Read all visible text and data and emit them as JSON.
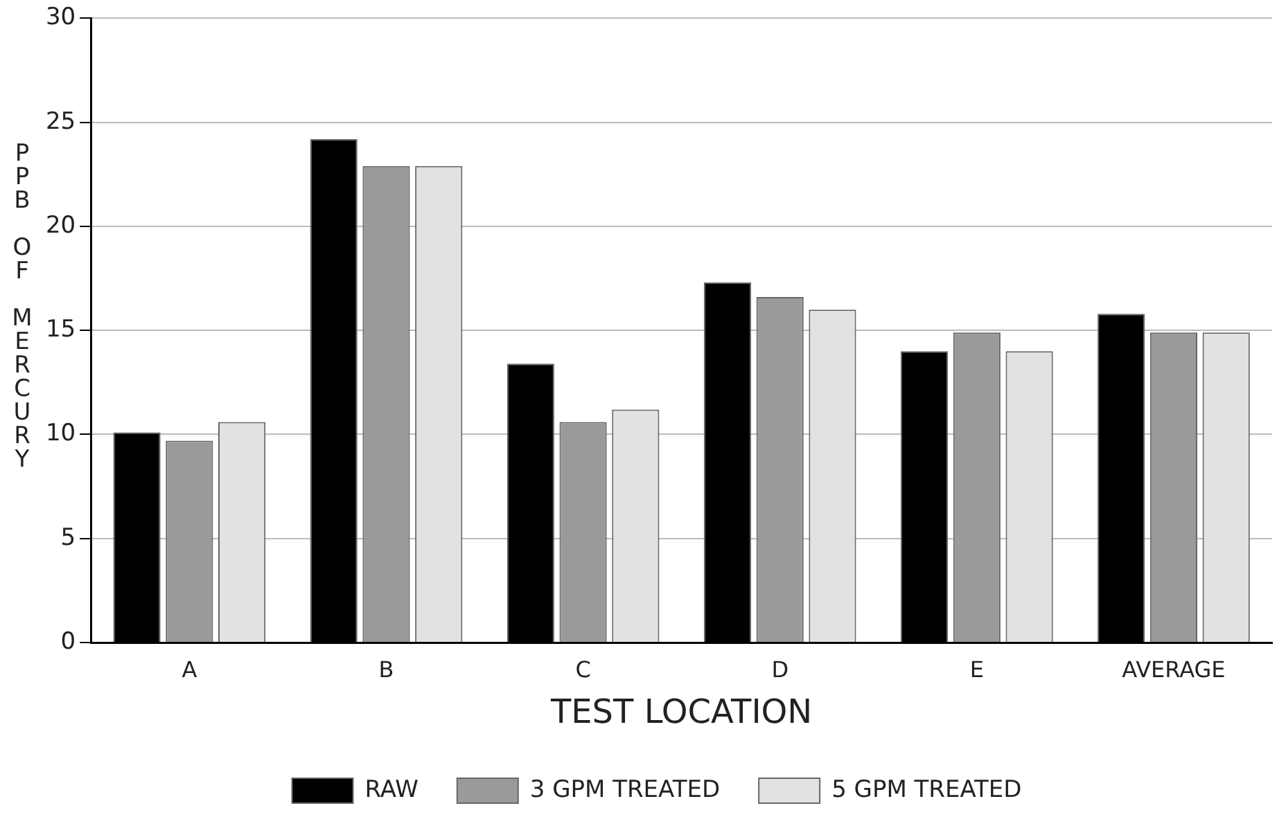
{
  "chart_data": {
    "type": "bar",
    "xlabel": "TEST LOCATION",
    "ylabel": "PPB OF MERCURY",
    "categories": [
      "A",
      "B",
      "C",
      "D",
      "E",
      "AVERAGE"
    ],
    "series": [
      {
        "name": "RAW",
        "color": "#000000",
        "values": [
          10.1,
          24.2,
          13.4,
          17.3,
          14.0,
          15.8
        ]
      },
      {
        "name": "3 GPM TREATED",
        "color": "#9a9a9a",
        "values": [
          9.7,
          22.9,
          10.6,
          16.6,
          14.9,
          14.9
        ]
      },
      {
        "name": "5 GPM TREATED",
        "color": "#e2e2e2",
        "values": [
          10.6,
          22.9,
          11.2,
          16.0,
          14.0,
          14.9
        ]
      }
    ],
    "ylim": [
      0,
      30
    ],
    "yticks": [
      0,
      5,
      10,
      15,
      20,
      25,
      30
    ],
    "grid": "y",
    "legend": "bottom"
  }
}
